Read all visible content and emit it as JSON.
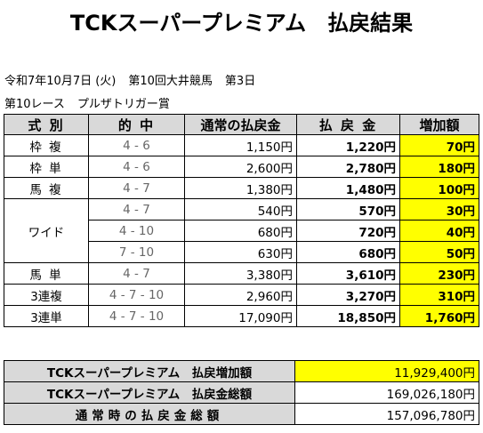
{
  "title": "TCKスーパープレミアム　払戻結果",
  "meta": {
    "date": "令和7年10月7日 (火)",
    "meeting": "第10回大井競馬",
    "day": "第3日",
    "race": "第10レース",
    "race_name": "プルザトリガー賞"
  },
  "headers": {
    "type": "式 別",
    "combo": "的 中",
    "normal": "通常の払戻金",
    "premium": "払 戻 金",
    "increase": "増加額"
  },
  "rows": [
    {
      "type": "枠 複",
      "combo": "4 - 6",
      "normal": "1,150円",
      "premium": "1,220円",
      "increase": "70円"
    },
    {
      "type": "枠 単",
      "combo": "4 - 6",
      "normal": "2,600円",
      "premium": "2,780円",
      "increase": "180円"
    },
    {
      "type": "馬 複",
      "combo": "4 - 7",
      "normal": "1,380円",
      "premium": "1,480円",
      "increase": "100円"
    },
    {
      "type": "ワイド",
      "combo": "4 - 7",
      "normal": "540円",
      "premium": "570円",
      "increase": "30円"
    },
    {
      "type": "",
      "combo": "4 - 10",
      "normal": "680円",
      "premium": "720円",
      "increase": "40円"
    },
    {
      "type": "",
      "combo": "7 - 10",
      "normal": "630円",
      "premium": "680円",
      "increase": "50円"
    },
    {
      "type": "馬 単",
      "combo": "4 - 7",
      "normal": "3,380円",
      "premium": "3,610円",
      "increase": "230円"
    },
    {
      "type": "3連複",
      "combo": "4 - 7 - 10",
      "normal": "2,960円",
      "premium": "3,270円",
      "increase": "310円"
    },
    {
      "type": "3連単",
      "combo": "4 - 7 - 10",
      "normal": "17,090円",
      "premium": "18,850円",
      "increase": "1,760円"
    }
  ],
  "summary": {
    "increase_total_label": "TCKスーパープレミアム　払戻増加額",
    "increase_total_value": "11,929,400円",
    "premium_total_label": "TCKスーパープレミアム　払戻金総額",
    "premium_total_value": "169,026,180円",
    "normal_total_label": "通常時の払戻金総額",
    "normal_total_value": "157,096,780円"
  },
  "colors": {
    "header_bg": "#d9d9d9",
    "highlight": "#ffff00"
  }
}
